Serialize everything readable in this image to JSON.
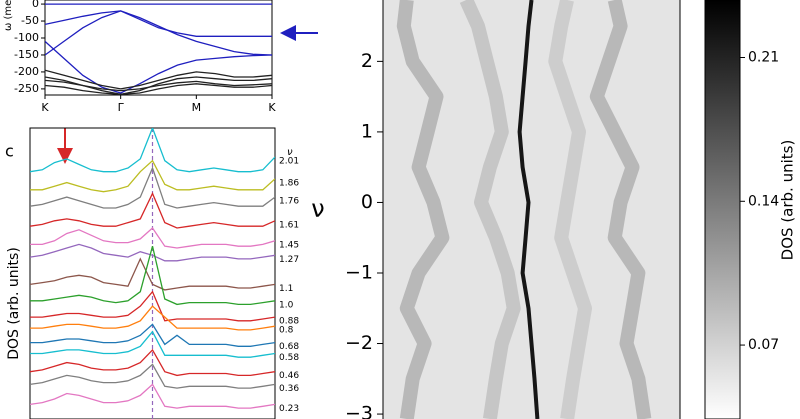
{
  "chart_data": [
    {
      "type": "line",
      "ylabel": "ω (meV)",
      "x": [
        0,
        0.25,
        0.5,
        0.75,
        1,
        1.25,
        1.5,
        1.75,
        2,
        2.25,
        2.5,
        2.75,
        3
      ],
      "xlim": [
        0,
        3
      ],
      "xticks": [
        {
          "value": 0,
          "label": "K"
        },
        {
          "value": 1,
          "label": "Γ"
        },
        {
          "value": 2,
          "label": "M"
        },
        {
          "value": 3,
          "label": "K"
        }
      ],
      "ylim": [
        -268,
        12
      ],
      "yticks": [
        0,
        -50,
        -100,
        -150,
        -200,
        -250
      ],
      "series": [
        {
          "color": "#1f1fbf",
          "values": [
            0,
            0,
            0,
            0,
            0,
            0,
            0,
            0,
            0,
            0,
            0,
            0,
            0
          ]
        },
        {
          "color": "#1f1fbf",
          "values": [
            -60,
            -48,
            -36,
            -26,
            -20,
            -40,
            -65,
            -90,
            -110,
            -125,
            -140,
            -148,
            -150
          ]
        },
        {
          "color": "#1f1fbf",
          "values": [
            -150,
            -110,
            -70,
            -40,
            -20,
            -45,
            -70,
            -85,
            -95,
            -95,
            -95,
            -95,
            -95
          ]
        },
        {
          "color": "#1f1fbf",
          "values": [
            -110,
            -160,
            -210,
            -245,
            -262,
            -235,
            -205,
            -180,
            -165,
            -160,
            -155,
            -152,
            -150
          ]
        },
        {
          "color": "#222222",
          "values": [
            -195,
            -210,
            -225,
            -240,
            -250,
            -240,
            -225,
            -210,
            -200,
            -205,
            -215,
            -215,
            -210
          ]
        },
        {
          "color": "#222222",
          "values": [
            -215,
            -225,
            -240,
            -255,
            -266,
            -255,
            -235,
            -220,
            -215,
            -220,
            -225,
            -225,
            -220
          ]
        },
        {
          "color": "#222222",
          "values": [
            -240,
            -245,
            -255,
            -262,
            -266,
            -262,
            -250,
            -240,
            -235,
            -240,
            -245,
            -245,
            -240
          ]
        },
        {
          "color": "#222222",
          "values": [
            -225,
            -230,
            -240,
            -250,
            -255,
            -250,
            -240,
            -232,
            -228,
            -235,
            -240,
            -238,
            -235
          ]
        }
      ]
    },
    {
      "type": "line",
      "panel": "c",
      "ylabel": "DOS (arb. units)",
      "legend_title": "ν",
      "x": [
        0,
        1,
        2,
        3,
        4,
        5,
        6,
        7,
        8,
        9,
        10,
        11,
        12,
        13,
        14,
        15,
        16,
        17,
        18,
        19,
        20
      ],
      "xlim": [
        0,
        20
      ],
      "ylim": [
        0,
        16
      ],
      "vlines": [
        {
          "x": 10,
          "color": "#9467bd",
          "dashed": true
        }
      ],
      "series": [
        {
          "name": "2.01",
          "color": "#17becf",
          "values": [
            13.6,
            13.7,
            14.1,
            14.3,
            14.0,
            13.7,
            13.6,
            13.6,
            13.8,
            14.3,
            16.0,
            14.2,
            13.7,
            13.6,
            13.7,
            13.8,
            13.7,
            13.6,
            13.6,
            13.7,
            14.4
          ]
        },
        {
          "name": "1.86",
          "color": "#bcbd22",
          "values": [
            12.6,
            12.6,
            12.8,
            13.0,
            12.8,
            12.6,
            12.5,
            12.6,
            12.8,
            13.6,
            14.2,
            12.9,
            12.6,
            12.6,
            12.7,
            12.8,
            12.7,
            12.6,
            12.6,
            12.6,
            13.2
          ]
        },
        {
          "name": "1.76",
          "color": "#7f7f7f",
          "values": [
            11.7,
            11.8,
            12.0,
            12.2,
            12.0,
            11.8,
            11.6,
            11.6,
            11.8,
            12.2,
            13.8,
            11.8,
            11.6,
            11.7,
            11.8,
            11.9,
            11.8,
            11.7,
            11.7,
            11.7,
            12.2
          ]
        },
        {
          "name": "1.61",
          "color": "#d62728",
          "values": [
            10.6,
            10.7,
            10.9,
            11.0,
            10.9,
            10.7,
            10.6,
            10.6,
            10.8,
            11.0,
            12.4,
            10.8,
            10.5,
            10.6,
            10.7,
            10.8,
            10.7,
            10.6,
            10.6,
            10.6,
            10.9
          ]
        },
        {
          "name": "1.45",
          "color": "#e377c2",
          "values": [
            9.6,
            9.6,
            9.8,
            10.2,
            10.4,
            10.1,
            9.8,
            9.7,
            9.7,
            9.9,
            10.5,
            9.5,
            9.4,
            9.5,
            9.6,
            9.6,
            9.6,
            9.5,
            9.5,
            9.6,
            9.8
          ]
        },
        {
          "name": "1.27",
          "color": "#9467bd",
          "values": [
            8.9,
            9.0,
            9.2,
            9.4,
            9.6,
            9.4,
            9.1,
            9.0,
            8.9,
            9.2,
            9.0,
            8.7,
            8.7,
            8.8,
            8.9,
            8.9,
            8.9,
            8.8,
            8.8,
            8.9,
            9.0
          ]
        },
        {
          "name": "1.1",
          "color": "#8c564b",
          "values": [
            7.4,
            7.5,
            7.6,
            7.8,
            7.9,
            7.8,
            7.5,
            7.4,
            7.3,
            8.8,
            7.4,
            7.1,
            7.2,
            7.3,
            7.3,
            7.3,
            7.3,
            7.2,
            7.2,
            7.3,
            7.4
          ]
        },
        {
          "name": "1.0",
          "color": "#2ca02c",
          "values": [
            6.5,
            6.5,
            6.6,
            6.7,
            6.8,
            6.7,
            6.5,
            6.4,
            6.5,
            7.0,
            9.5,
            6.6,
            6.3,
            6.4,
            6.4,
            6.4,
            6.4,
            6.3,
            6.3,
            6.4,
            6.5
          ]
        },
        {
          "name": "0.88",
          "color": "#d62728",
          "values": [
            5.6,
            5.6,
            5.7,
            5.8,
            5.8,
            5.7,
            5.6,
            5.6,
            5.7,
            6.2,
            7.0,
            5.4,
            5.5,
            5.5,
            5.5,
            5.5,
            5.5,
            5.4,
            5.4,
            5.5,
            5.6
          ]
        },
        {
          "name": "0.8",
          "color": "#ff7f0e",
          "values": [
            5.0,
            5.0,
            5.1,
            5.2,
            5.2,
            5.1,
            5.0,
            5.0,
            5.1,
            5.4,
            6.2,
            5.6,
            5.0,
            5.0,
            5.0,
            5.0,
            5.0,
            4.9,
            4.9,
            5.0,
            5.1
          ]
        },
        {
          "name": "0.68",
          "color": "#1f77b4",
          "values": [
            4.2,
            4.2,
            4.3,
            4.4,
            4.4,
            4.3,
            4.2,
            4.2,
            4.3,
            4.6,
            5.2,
            4.1,
            4.6,
            4.1,
            4.1,
            4.1,
            4.1,
            4.0,
            4.0,
            4.1,
            4.2
          ]
        },
        {
          "name": "0.58",
          "color": "#17becf",
          "values": [
            3.6,
            3.6,
            3.7,
            3.8,
            3.8,
            3.7,
            3.6,
            3.6,
            3.7,
            4.0,
            4.8,
            3.5,
            3.5,
            3.5,
            3.5,
            3.5,
            3.5,
            3.4,
            3.4,
            3.5,
            3.6
          ]
        },
        {
          "name": "0.46",
          "color": "#d62728",
          "values": [
            2.6,
            2.7,
            2.9,
            3.1,
            3.0,
            2.8,
            2.7,
            2.7,
            2.8,
            3.1,
            3.8,
            2.6,
            2.4,
            2.5,
            2.5,
            2.5,
            2.5,
            2.4,
            2.4,
            2.5,
            2.6
          ]
        },
        {
          "name": "0.36",
          "color": "#7f7f7f",
          "values": [
            1.9,
            2.0,
            2.2,
            2.4,
            2.3,
            2.1,
            2.0,
            2.0,
            2.1,
            2.4,
            3.0,
            1.8,
            1.7,
            1.8,
            1.8,
            1.8,
            1.8,
            1.7,
            1.7,
            1.8,
            1.9
          ]
        },
        {
          "name": "0.23",
          "color": "#e377c2",
          "values": [
            0.8,
            0.9,
            1.1,
            1.4,
            1.3,
            1.1,
            0.9,
            0.9,
            1.0,
            1.3,
            1.9,
            0.7,
            0.6,
            0.7,
            0.7,
            0.7,
            0.7,
            0.6,
            0.6,
            0.7,
            0.8
          ]
        }
      ]
    },
    {
      "type": "heatmap",
      "ylabel": "ν",
      "xlim": [
        0,
        1
      ],
      "ylim": [
        -3.07,
        2.87
      ],
      "yticks": [
        {
          "value": -3,
          "label": "−3"
        },
        {
          "value": -2,
          "label": "−2"
        },
        {
          "value": -1,
          "label": "−1"
        },
        0,
        1,
        2
      ],
      "nu": [
        2.87,
        2.5,
        2,
        1.5,
        1,
        0.5,
        0,
        -0.5,
        -1,
        -1.5,
        -2,
        -2.5,
        -3.07
      ],
      "ridges": [
        {
          "value": 0.12,
          "x": [
            0.08,
            0.07,
            0.1,
            0.18,
            0.15,
            0.12,
            0.17,
            0.2,
            0.12,
            0.08,
            0.14,
            0.1,
            0.08
          ]
        },
        {
          "value": 0.1,
          "x": [
            0.28,
            0.32,
            0.35,
            0.38,
            0.4,
            0.36,
            0.33,
            0.38,
            0.42,
            0.44,
            0.4,
            0.38,
            0.36
          ]
        },
        {
          "value": 0.22,
          "x": [
            0.5,
            0.49,
            0.48,
            0.47,
            0.46,
            0.47,
            0.49,
            0.48,
            0.47,
            0.49,
            0.5,
            0.51,
            0.52
          ]
        },
        {
          "value": 0.09,
          "x": [
            0.62,
            0.6,
            0.58,
            0.62,
            0.66,
            0.64,
            0.62,
            0.6,
            0.64,
            0.68,
            0.66,
            0.64,
            0.62
          ]
        },
        {
          "value": 0.12,
          "x": [
            0.78,
            0.8,
            0.76,
            0.72,
            0.78,
            0.84,
            0.8,
            0.78,
            0.86,
            0.84,
            0.82,
            0.86,
            0.88
          ]
        }
      ],
      "colorbar": {
        "label": "DOS (arb. units)",
        "clim": [
          0.034,
          0.238
        ],
        "ticks": [
          0.07,
          0.14,
          0.21
        ]
      }
    }
  ]
}
